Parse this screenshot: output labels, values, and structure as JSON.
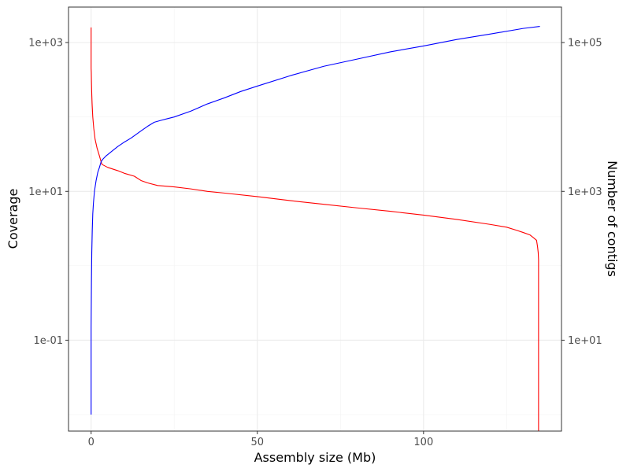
{
  "chart_data": {
    "type": "line",
    "title": "",
    "xlabel": "Assembly size (Mb)",
    "ylabel": "Coverage",
    "y2label": "Number of contigs",
    "xlim": [
      -6.8,
      141.5
    ],
    "xscale": "linear",
    "yscale": "log10",
    "ylim": [
      0.006,
      3000
    ],
    "y2scale": "log10",
    "y2lim": [
      0.6,
      300000
    ],
    "x_ticks": [
      0,
      50,
      100
    ],
    "x_tick_labels": [
      "0",
      "50",
      "100"
    ],
    "y_ticks": [
      1000,
      10,
      0.1
    ],
    "y_tick_labels": [
      "1e+03",
      "1e+01",
      "1e-01"
    ],
    "y2_ticks": [
      100000,
      1000,
      10
    ],
    "y2_tick_labels": [
      "1e+05",
      "1e+03",
      "1e+01"
    ],
    "grid": true,
    "legend": "none",
    "series": [
      {
        "axis": "y",
        "color": "#ff0000",
        "x": [
          0,
          0,
          0.05,
          0.1,
          0.2,
          0.3,
          0.5,
          0.8,
          1.2,
          1.8,
          2.5,
          3.0,
          3.3,
          5,
          8,
          10,
          13,
          15,
          17,
          20,
          25,
          30,
          35,
          40,
          50,
          60,
          70,
          80,
          90,
          100,
          110,
          120,
          125,
          128,
          130,
          132,
          133,
          134,
          134.3,
          134.5,
          134.6,
          134.6
        ],
        "values": [
          1600,
          450,
          400,
          300,
          200,
          150,
          100,
          70,
          50,
          38,
          30,
          25,
          23,
          21,
          19,
          17.5,
          16,
          14,
          13,
          12,
          11.5,
          10.8,
          10,
          9.5,
          8.5,
          7.5,
          6.7,
          6.0,
          5.4,
          4.8,
          4.2,
          3.6,
          3.3,
          3.0,
          2.8,
          2.6,
          2.4,
          2.2,
          1.8,
          1.5,
          1.2,
          0.006
        ]
      },
      {
        "axis": "y2",
        "color": "#0000ff",
        "x": [
          0,
          0,
          0.1,
          0.2,
          0.35,
          0.5,
          0.7,
          1,
          1.5,
          2,
          2.5,
          3,
          3.5,
          4.5,
          6,
          8,
          10,
          12,
          15,
          17,
          19,
          21,
          23,
          25,
          30,
          35,
          40,
          45,
          50,
          60,
          70,
          80,
          90,
          100,
          110,
          120,
          130,
          135
        ],
        "values": [
          1,
          15,
          60,
          150,
          300,
          500,
          700,
          1000,
          1400,
          1800,
          2100,
          2500,
          2700,
          3000,
          3400,
          4000,
          4600,
          5200,
          6500,
          7500,
          8500,
          9000,
          9500,
          10000,
          12000,
          15000,
          18000,
          22000,
          26000,
          36000,
          48000,
          60000,
          75000,
          90000,
          110000,
          130000,
          155000,
          165000
        ]
      }
    ]
  }
}
